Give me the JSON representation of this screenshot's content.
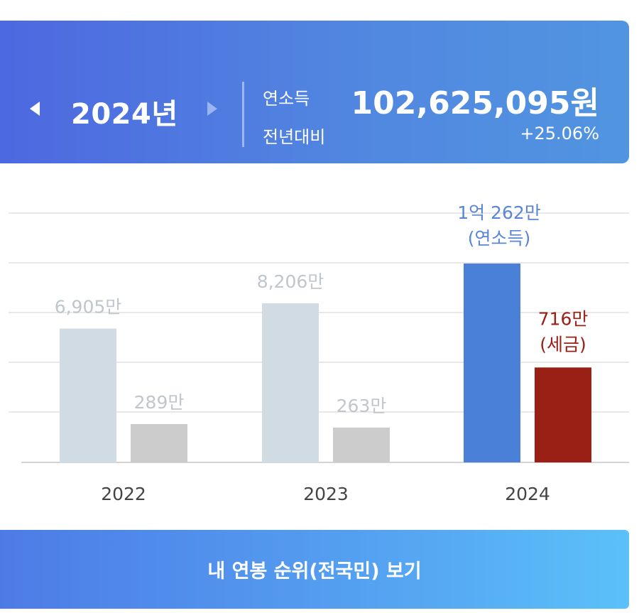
{
  "header": {
    "year_label": "2024년",
    "income_label": "연소득",
    "income_value": "102,625,095원",
    "change_label": "전년대비",
    "change_value": "+25.06%"
  },
  "colors": {
    "header_gradient": [
      "#4d68e0",
      "#5195e0"
    ],
    "income_past": "#d1dbe3",
    "tax_past": "#cccccc",
    "income_current": "#4a80d8",
    "tax_current": "#9a2016",
    "label_past": "#c0c6cc",
    "label_income_current": "#5a86d6",
    "label_tax_current": "#9a2016"
  },
  "chart_data": {
    "type": "bar",
    "unit": "만",
    "categories": [
      "2022",
      "2023",
      "2024"
    ],
    "series": [
      {
        "name": "연소득",
        "values": [
          6905,
          8206,
          10262
        ]
      },
      {
        "name": "세금",
        "values": [
          289,
          263,
          716
        ]
      }
    ],
    "labels": [
      {
        "income": "6,905만",
        "tax": "289만"
      },
      {
        "income": "8,206만",
        "tax": "263만"
      },
      {
        "income": "1억 262만",
        "income_sub": "(연소득)",
        "tax": "716만",
        "tax_sub": "(세금)"
      }
    ],
    "tax_axis_max": 1500,
    "grid": true,
    "highlight_index": 2
  },
  "cta": {
    "label": "내 연봉 순위(전국민) 보기"
  }
}
